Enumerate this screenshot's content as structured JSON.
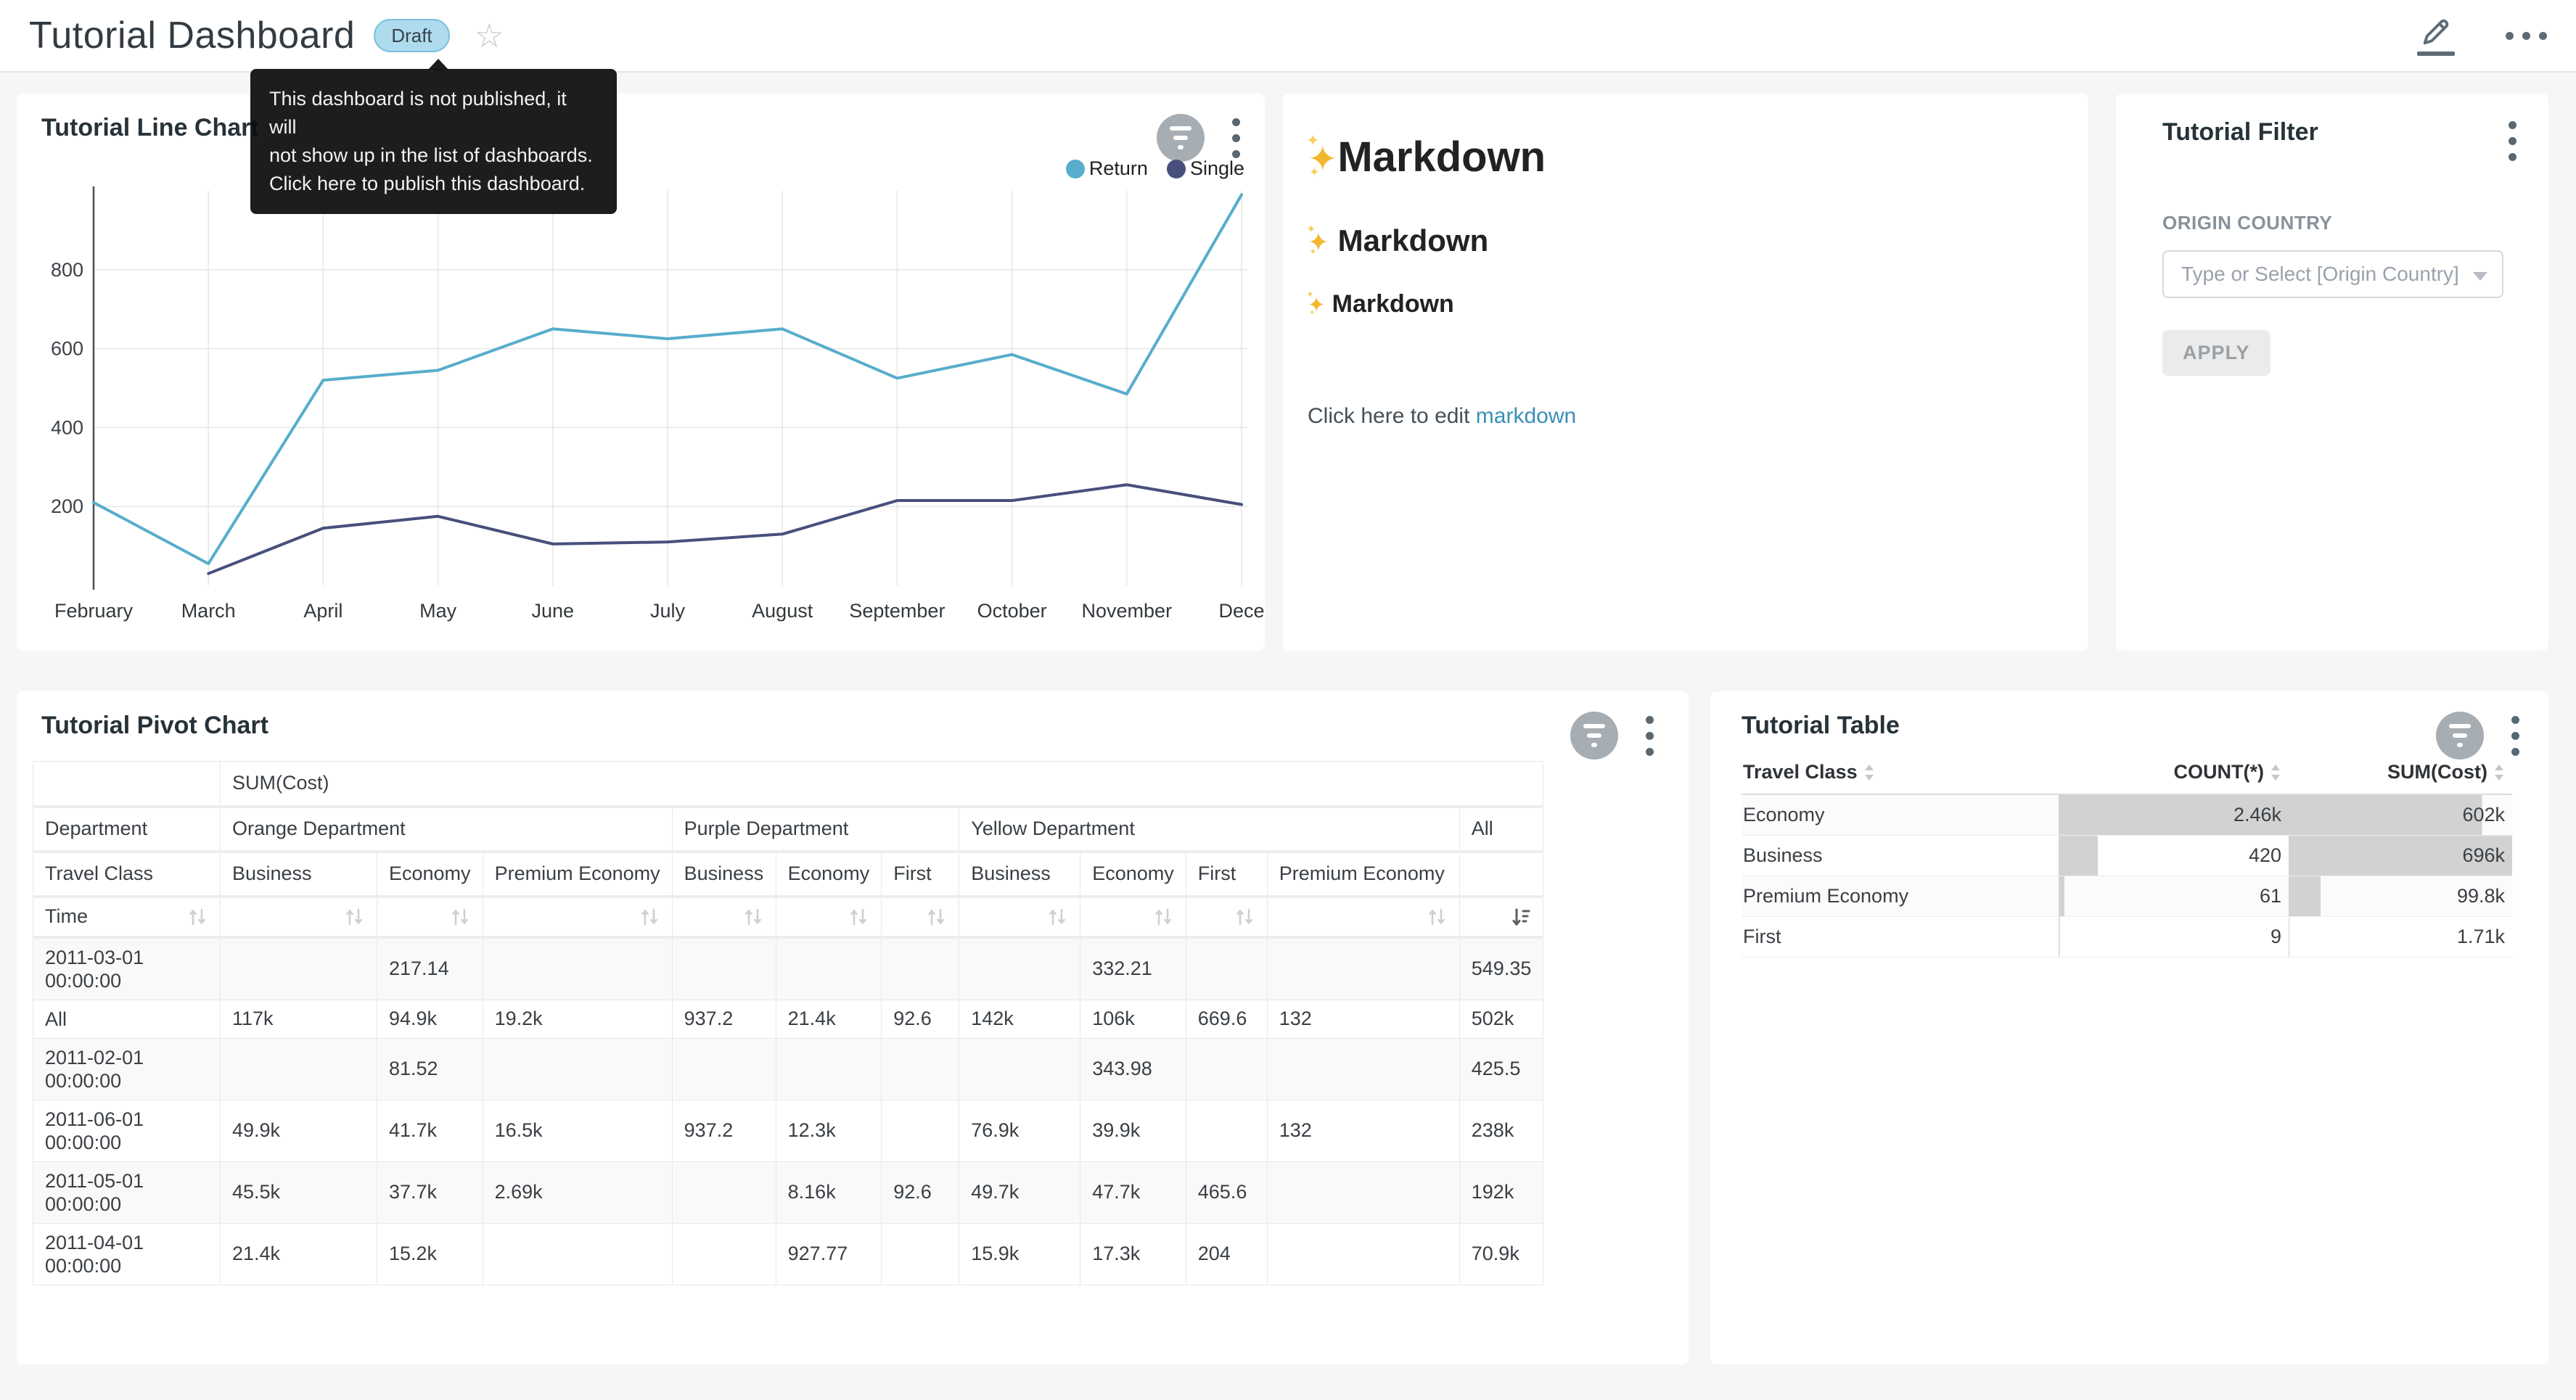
{
  "page": {
    "background": "#f6f6f6"
  },
  "header": {
    "title": "Tutorial Dashboard",
    "draft_badge": "Draft",
    "tooltip_lines": [
      "This dashboard is not published, it will",
      "not show up in the list of dashboards.",
      "Click here to publish this dashboard."
    ],
    "icons": {
      "star": "star-outline-icon",
      "edit": "edit-pencil-icon",
      "more": "ellipsis-icon"
    },
    "star_glyph": "☆"
  },
  "line_chart_card": {
    "title": "Tutorial Line Chart",
    "legend": [
      {
        "label": "Return",
        "color": "#57ADCB"
      },
      {
        "label": "Single",
        "color": "#47507C"
      }
    ],
    "chart_data": {
      "type": "line",
      "x": [
        "February",
        "March",
        "April",
        "May",
        "June",
        "July",
        "August",
        "September",
        "October",
        "November",
        "Dece"
      ],
      "series": [
        {
          "name": "Return",
          "color": "#57ADCB",
          "values": [
            210,
            55,
            520,
            545,
            650,
            625,
            650,
            525,
            585,
            485,
            990
          ]
        },
        {
          "name": "Single",
          "color": "#47507C",
          "values": [
            null,
            30,
            145,
            175,
            105,
            110,
            130,
            215,
            215,
            255,
            205
          ]
        }
      ],
      "ylim": [
        0,
        1000
      ],
      "yticks": [
        200,
        400,
        600,
        800
      ],
      "grid": true,
      "legend_position": "top-right"
    }
  },
  "markdown_card": {
    "sparkle": "✦",
    "h1": "Markdown",
    "h2": "Markdown",
    "h3": "Markdown",
    "paragraph": "Click here to edit ",
    "link_text": "markdown",
    "link_color": "#3A8FB7"
  },
  "filter_card": {
    "title": "Tutorial Filter",
    "field_label": "ORIGIN COUNTRY",
    "select_placeholder": "Type or Select [Origin Country]",
    "apply_label": "APPLY"
  },
  "pivot_card": {
    "title": "Tutorial Pivot Chart",
    "chart_data": {
      "type": "table",
      "metric_header": "SUM(Cost)",
      "row_dimension_label": "Department",
      "col_dimension_label": "Travel Class",
      "time_label": "Time",
      "column_groups": [
        {
          "label": "Orange Department",
          "columns": [
            "Business",
            "Economy",
            "Premium Economy"
          ]
        },
        {
          "label": "Purple Department",
          "columns": [
            "Business",
            "Economy",
            "First"
          ]
        },
        {
          "label": "Yellow Department",
          "columns": [
            "Business",
            "Economy",
            "First",
            "Premium Economy"
          ]
        },
        {
          "label": "All",
          "columns": [
            ""
          ]
        }
      ],
      "rows": [
        {
          "label": "2011-03-01 00:00:00",
          "values": [
            "",
            "217.14",
            "",
            "",
            "",
            "",
            "",
            "332.21",
            "",
            "",
            "549.35"
          ]
        },
        {
          "label": "All",
          "values": [
            "117k",
            "94.9k",
            "19.2k",
            "937.2",
            "21.4k",
            "92.6",
            "142k",
            "106k",
            "669.6",
            "132",
            "502k"
          ]
        },
        {
          "label": "2011-02-01 00:00:00",
          "values": [
            "",
            "81.52",
            "",
            "",
            "",
            "",
            "",
            "343.98",
            "",
            "",
            "425.5"
          ]
        },
        {
          "label": "2011-06-01 00:00:00",
          "values": [
            "49.9k",
            "41.7k",
            "16.5k",
            "937.2",
            "12.3k",
            "",
            "76.9k",
            "39.9k",
            "",
            "132",
            "238k"
          ]
        },
        {
          "label": "2011-05-01 00:00:00",
          "values": [
            "45.5k",
            "37.7k",
            "2.69k",
            "",
            "8.16k",
            "92.6",
            "49.7k",
            "47.7k",
            "465.6",
            "",
            "192k"
          ]
        },
        {
          "label": "2011-04-01 00:00:00",
          "values": [
            "21.4k",
            "15.2k",
            "",
            "",
            "927.77",
            "",
            "15.9k",
            "17.3k",
            "204",
            "",
            "70.9k"
          ]
        }
      ]
    }
  },
  "table_card": {
    "title": "Tutorial Table",
    "chart_data": {
      "type": "table",
      "columns": [
        "Travel Class",
        "COUNT(*)",
        "SUM(Cost)"
      ],
      "bar_color": "#d2d2d2",
      "rows": [
        {
          "travel_class": "Economy",
          "count": "2.46k",
          "count_bar_pct": 100,
          "sum": "602k",
          "sum_bar_pct": 86.5
        },
        {
          "travel_class": "Business",
          "count": "420",
          "count_bar_pct": 17,
          "sum": "696k",
          "sum_bar_pct": 100
        },
        {
          "travel_class": "Premium Economy",
          "count": "61",
          "count_bar_pct": 2.5,
          "sum": "99.8k",
          "sum_bar_pct": 14.3
        },
        {
          "travel_class": "First",
          "count": "9",
          "count_bar_pct": 0.4,
          "sum": "1.71k",
          "sum_bar_pct": 0.3
        }
      ]
    }
  }
}
